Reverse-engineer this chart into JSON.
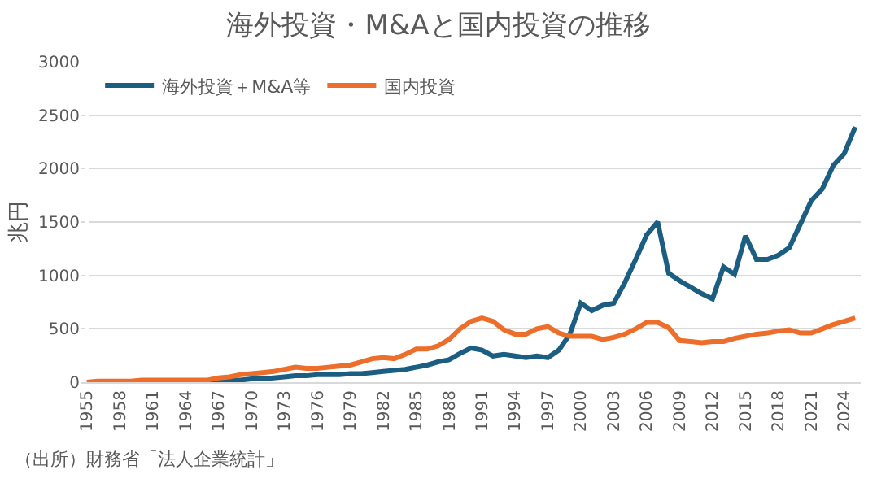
{
  "chart_data": {
    "type": "line",
    "title": "海外投資・M&Aと国内投資の推移",
    "ylabel": "兆円",
    "categories": [
      "1955",
      null,
      null,
      "1958",
      null,
      null,
      "1961",
      null,
      null,
      "1964",
      null,
      null,
      "1967",
      null,
      null,
      "1970",
      null,
      null,
      "1973",
      null,
      null,
      "1976",
      null,
      null,
      "1979",
      null,
      null,
      "1982",
      null,
      null,
      "1985",
      null,
      null,
      "1988",
      null,
      null,
      "1991",
      null,
      null,
      "1994",
      null,
      null,
      "1997",
      null,
      null,
      "2000",
      null,
      null,
      "2003",
      null,
      null,
      "2006",
      null,
      null,
      "2009",
      null,
      null,
      "2012",
      null,
      null,
      "2015",
      null,
      null,
      "2018",
      null,
      null,
      "2021",
      null,
      null,
      "2024",
      null
    ],
    "series": [
      {
        "name": "海外投資＋M&A等",
        "color": "#1b5e82",
        "values": [
          null,
          null,
          null,
          null,
          null,
          null,
          null,
          null,
          null,
          null,
          null,
          10,
          10,
          20,
          20,
          30,
          30,
          40,
          50,
          60,
          60,
          70,
          70,
          70,
          80,
          80,
          90,
          100,
          110,
          120,
          140,
          160,
          190,
          210,
          270,
          320,
          300,
          245,
          260,
          245,
          230,
          245,
          230,
          300,
          450,
          740,
          670,
          720,
          740,
          930,
          1150,
          1380,
          1500,
          1020,
          950,
          890,
          830,
          780,
          1080,
          1010,
          1370,
          1150,
          1150,
          1190,
          1260,
          1480,
          1700,
          1810,
          2030,
          2140,
          2390
        ]
      },
      {
        "name": "国内投資",
        "color": "#ed6d2b",
        "values": [
          0,
          10,
          10,
          10,
          10,
          20,
          20,
          20,
          20,
          20,
          20,
          20,
          40,
          50,
          70,
          80,
          90,
          100,
          120,
          140,
          130,
          130,
          140,
          150,
          160,
          190,
          220,
          230,
          220,
          260,
          310,
          310,
          340,
          400,
          500,
          570,
          600,
          570,
          490,
          450,
          450,
          500,
          520,
          460,
          430,
          430,
          430,
          400,
          420,
          450,
          500,
          560,
          560,
          510,
          390,
          380,
          370,
          380,
          380,
          410,
          430,
          450,
          460,
          480,
          490,
          460,
          460,
          500,
          540,
          570,
          600
        ]
      }
    ],
    "ylim": [
      0,
      3000
    ],
    "yticks": [
      0,
      500,
      1000,
      1500,
      2000,
      2500,
      3000
    ],
    "grid": "y",
    "legend": "top left",
    "annotations": [
      "（出所）財務省「法人企業統計」"
    ]
  }
}
